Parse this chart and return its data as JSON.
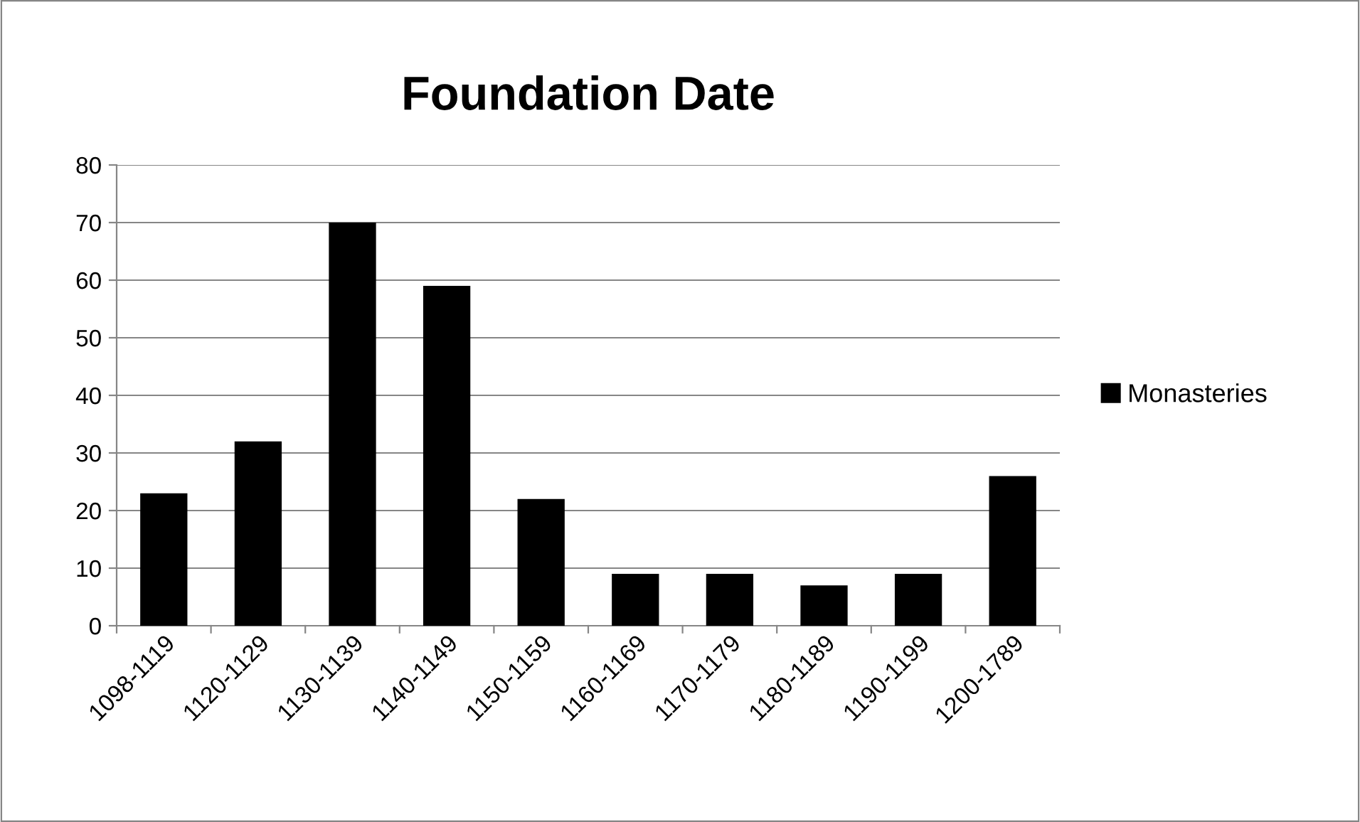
{
  "chart_data": {
    "type": "bar",
    "title": "Foundation Date",
    "categories": [
      "1098-1119",
      "1120-1129",
      "1130-1139",
      "1140-1149",
      "1150-1159",
      "1160-1169",
      "1170-1179",
      "1180-1189",
      "1190-1199",
      "1200-1789"
    ],
    "series": [
      {
        "name": "Monasteries",
        "color": "#000000",
        "values": [
          23,
          32,
          70,
          59,
          22,
          9,
          9,
          7,
          9,
          26
        ]
      }
    ],
    "ylim": [
      0,
      80
    ],
    "yticks": [
      0,
      10,
      20,
      30,
      40,
      50,
      60,
      70,
      80
    ],
    "grid": "y",
    "legend": "right"
  }
}
